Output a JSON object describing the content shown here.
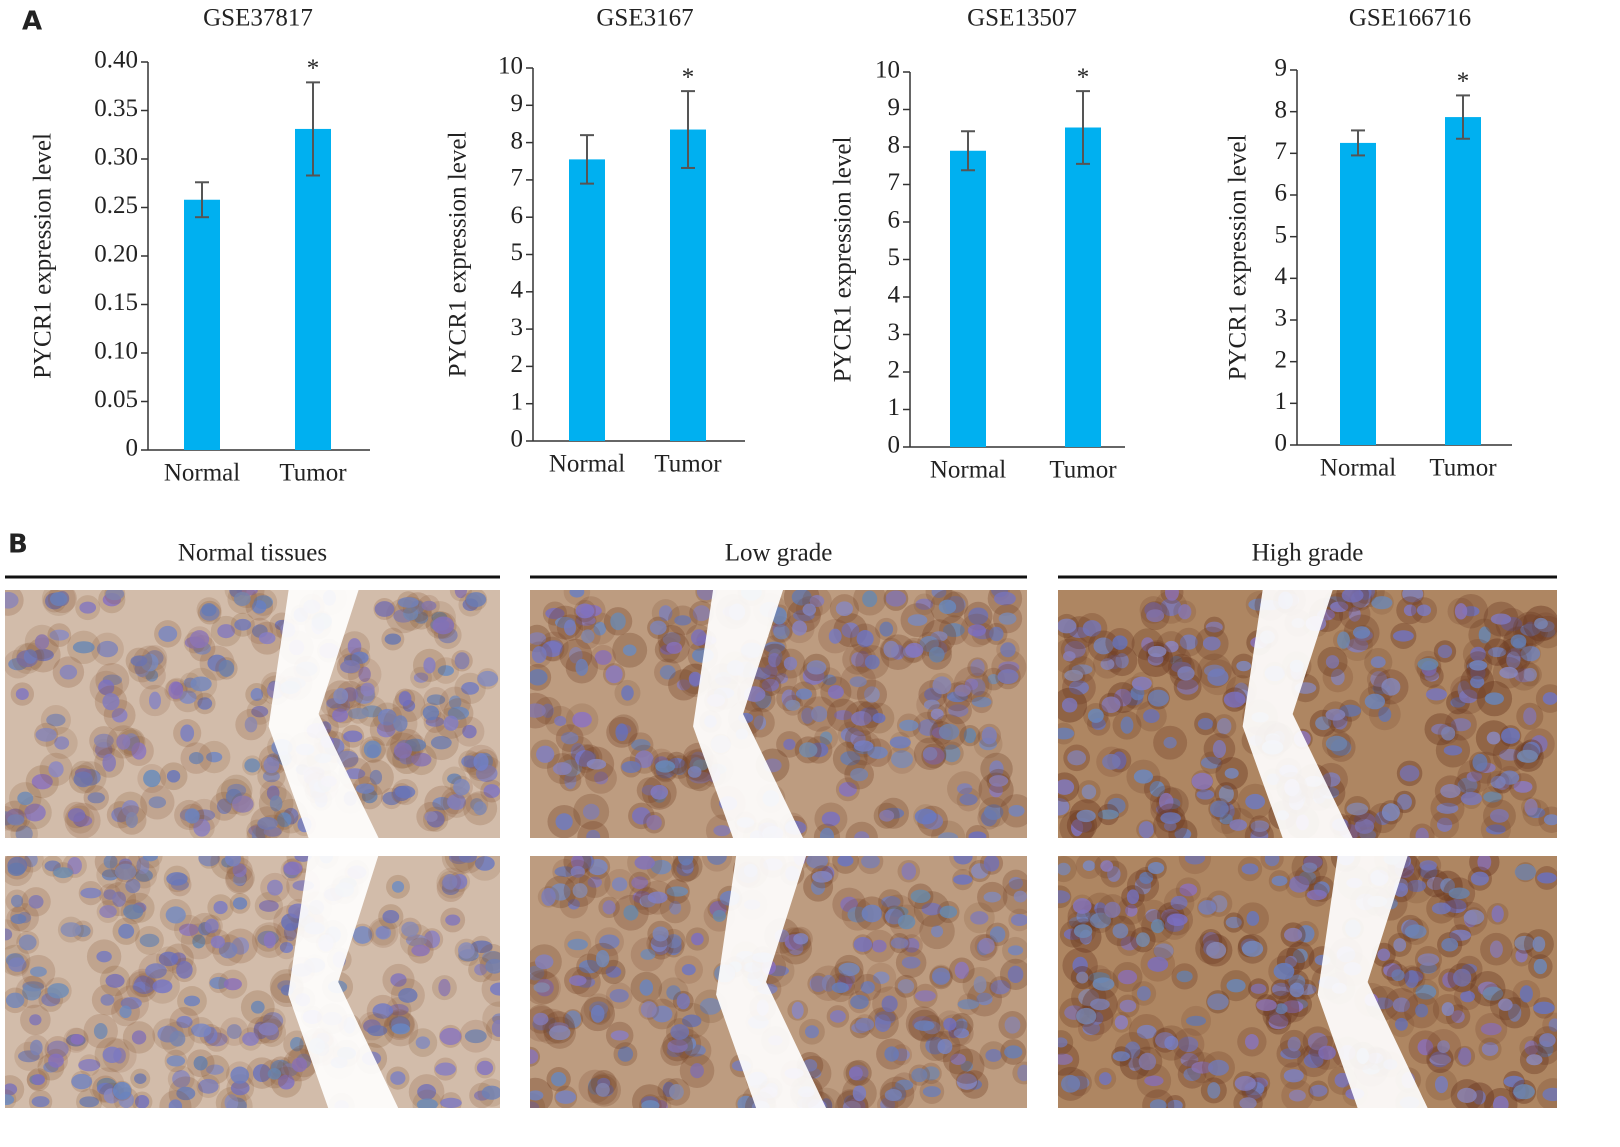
{
  "panel_labels": [
    "A",
    "B"
  ],
  "chart_data": [
    {
      "type": "bar",
      "title": "GSE37817",
      "ylabel": "PYCR1 expression level",
      "categories": [
        "Normal",
        "Tumor"
      ],
      "values": [
        0.258,
        0.331
      ],
      "errors": [
        0.018,
        0.048
      ],
      "annotations": [
        null,
        "*"
      ],
      "color": "#00b0f0",
      "error_color": "#555555",
      "ylim": [
        0,
        0.4
      ],
      "yticks": [
        0,
        0.05,
        {
          "value": 0.1,
          "label": "0.10"
        },
        0.15,
        {
          "value": 0.2,
          "label": "0.20"
        },
        0.25,
        {
          "value": 0.3,
          "label": "0.30"
        },
        0.35,
        {
          "value": 0.4,
          "label": "0.40"
        }
      ],
      "grid": false
    },
    {
      "type": "bar",
      "title": "GSE3167",
      "ylabel": "PYCR1 expression level",
      "categories": [
        "Normal",
        "Tumor"
      ],
      "values": [
        7.55,
        8.35
      ],
      "errors": [
        0.65,
        1.03
      ],
      "annotations": [
        null,
        "*"
      ],
      "color": "#00b0f0",
      "error_color": "#555555",
      "ylim": [
        0,
        10
      ],
      "yticks": [
        0,
        1,
        2,
        3,
        4,
        5,
        6,
        7,
        8,
        9,
        10
      ],
      "grid": false
    },
    {
      "type": "bar",
      "title": "GSE13507",
      "ylabel": "PYCR1 expression level",
      "categories": [
        "Normal",
        "Tumor"
      ],
      "values": [
        7.9,
        8.52
      ],
      "errors": [
        0.52,
        0.97
      ],
      "annotations": [
        null,
        "*"
      ],
      "color": "#00b0f0",
      "error_color": "#555555",
      "ylim": [
        0,
        10
      ],
      "yticks": [
        0,
        1,
        2,
        3,
        4,
        5,
        6,
        7,
        8,
        9,
        10
      ],
      "grid": false
    },
    {
      "type": "bar",
      "title": "GSE166716",
      "ylabel": "PYCR1 expression level",
      "categories": [
        "Normal",
        "Tumor"
      ],
      "values": [
        7.25,
        7.87
      ],
      "errors": [
        0.3,
        0.52
      ],
      "annotations": [
        null,
        "*"
      ],
      "color": "#00b0f0",
      "error_color": "#555555",
      "ylim": [
        0,
        9
      ],
      "yticks": [
        0,
        1,
        2,
        3,
        4,
        5,
        6,
        7,
        8,
        9
      ],
      "grid": false
    }
  ],
  "histology": {
    "columns": [
      "Normal tissues",
      "Low grade",
      "High grade"
    ]
  }
}
